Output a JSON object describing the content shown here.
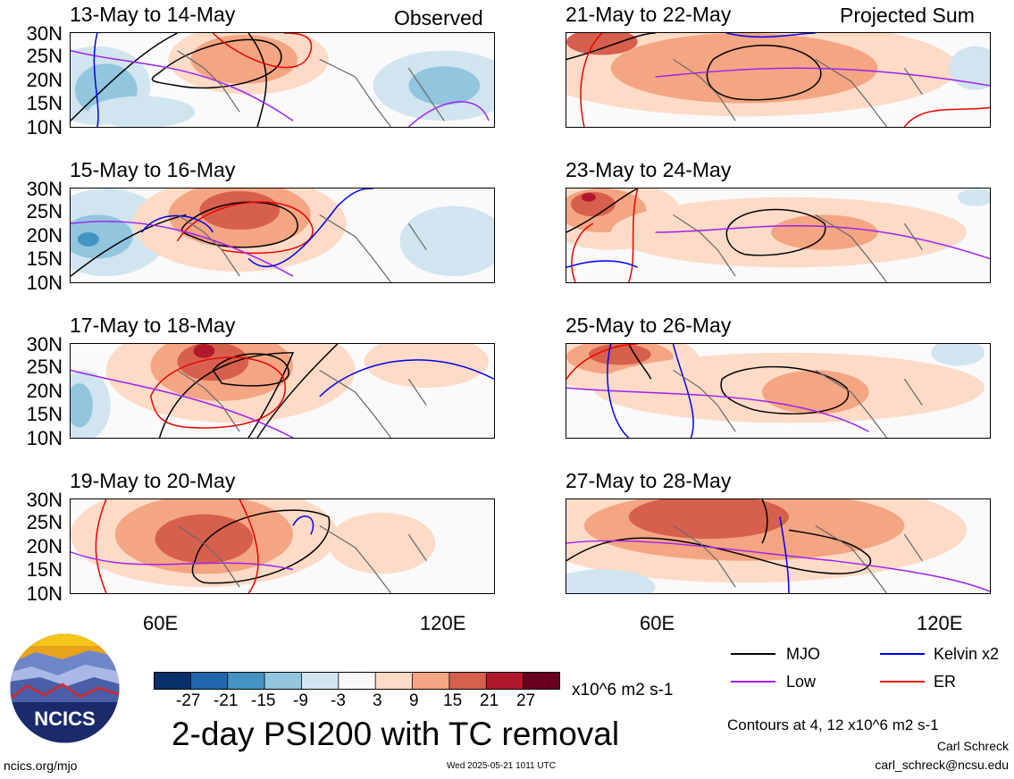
{
  "column_labels": {
    "left": "Observed",
    "right": "Projected Sum"
  },
  "panels": {
    "left": [
      "13-May to 14-May",
      "15-May to 16-May",
      "17-May to 18-May",
      "19-May to 20-May"
    ],
    "right": [
      "21-May to 22-May",
      "23-May to 24-May",
      "25-May to 26-May",
      "27-May to 28-May"
    ]
  },
  "latitude_labels": [
    "30N",
    "25N",
    "20N",
    "15N",
    "10N"
  ],
  "longitude_labels": [
    "60E",
    "120E"
  ],
  "colorbar": {
    "ticks": [
      "-27",
      "-21",
      "-15",
      "-9",
      "-3",
      "3",
      "9",
      "15",
      "21",
      "27"
    ],
    "colors": [
      "#08306b",
      "#2166ac",
      "#4393c3",
      "#92c5de",
      "#d1e5f0",
      "#f7f7f7",
      "#fddbc7",
      "#f4a582",
      "#d6604d",
      "#b2182b",
      "#67001f"
    ],
    "units": "x10^6 m2 s-1"
  },
  "contour_legend": [
    {
      "label": "MJO",
      "color": "#000000"
    },
    {
      "label": "Kelvin x2",
      "color": "#0000ee"
    },
    {
      "label": "Low",
      "color": "#a020f0"
    },
    {
      "label": "ER",
      "color": "#ee0000"
    }
  ],
  "main_title": "2-day PSI200 with TC removal",
  "contours_note": "Contours at 4, 12 x10^6 m2 s-1",
  "author": "Carl Schreck",
  "email": "carl_schreck@ncsu.edu",
  "website": "ncics.org/mjo",
  "timestamp": "Wed 2025-05-21 1011 UTC",
  "logo_text": "NCICS"
}
